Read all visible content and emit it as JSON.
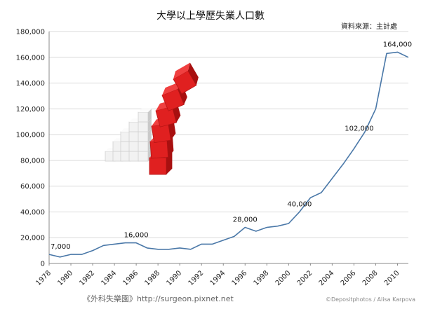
{
  "footer": {
    "blog": "《外科失樂園》http://surgeon.pixnet.net",
    "credit": "©Depositphotos / Alisa Karpova"
  },
  "decoration": {
    "image": "stacked-cubes-illustration",
    "colors": {
      "cube_white": "#f2f2f2",
      "cube_red": "#e02020"
    }
  },
  "chart_data": {
    "type": "line",
    "title": "大學以上學歷失業人口數",
    "source": "資料來源：主計處",
    "x": [
      1978,
      1979,
      1980,
      1981,
      1982,
      1983,
      1984,
      1985,
      1986,
      1987,
      1988,
      1989,
      1990,
      1991,
      1992,
      1993,
      1994,
      1995,
      1996,
      1997,
      1998,
      1999,
      2000,
      2001,
      2002,
      2003,
      2004,
      2005,
      2006,
      2007,
      2008,
      2009,
      2010,
      2011
    ],
    "series": [
      {
        "values": [
          7000,
          5000,
          7000,
          7000,
          10000,
          14000,
          15000,
          16000,
          16000,
          12000,
          11000,
          11000,
          12000,
          11000,
          15000,
          15000,
          18000,
          21000,
          28000,
          25000,
          28000,
          29000,
          31000,
          40000,
          51000,
          55000,
          66000,
          77000,
          89000,
          102000,
          120000,
          163000,
          164000,
          160000
        ],
        "color": "#4a78a8"
      }
    ],
    "data_labels": [
      {
        "x": 1978,
        "text": "7,000"
      },
      {
        "x": 1986,
        "text": "16,000"
      },
      {
        "x": 1996,
        "text": "28,000"
      },
      {
        "x": 2001,
        "text": "40,000"
      },
      {
        "x": 2007,
        "text": "102,000"
      },
      {
        "x": 2010,
        "text": "164,000"
      }
    ],
    "ylim": [
      0,
      180000
    ],
    "yticks": [
      0,
      20000,
      40000,
      60000,
      80000,
      100000,
      120000,
      140000,
      160000,
      180000
    ],
    "ytick_labels": [
      "0",
      "20,000",
      "40,000",
      "60,000",
      "80,000",
      "100,000",
      "120,000",
      "140,000",
      "160,000",
      "180,000"
    ],
    "xticks": [
      1978,
      1980,
      1982,
      1984,
      1986,
      1988,
      1990,
      1992,
      1994,
      1996,
      1998,
      2000,
      2002,
      2004,
      2006,
      2008,
      2010
    ],
    "xlim": [
      1978,
      2011
    ],
    "grid": "horizontal",
    "colors": {
      "grid": "#d9d9d9",
      "axis": "#888888"
    }
  }
}
